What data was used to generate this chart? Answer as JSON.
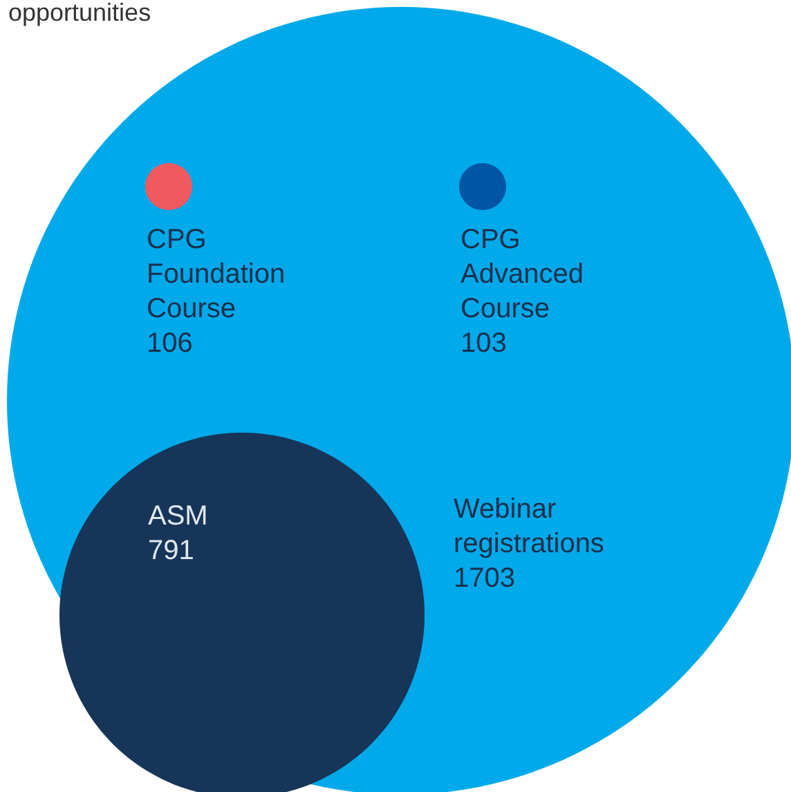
{
  "chart_data": {
    "type": "other",
    "title": "opportunities",
    "categories": [
      "Webinar registrations",
      "ASM",
      "CPG Foundation Course",
      "CPG Advanced Course"
    ],
    "values": [
      1703,
      791,
      106,
      103
    ],
    "data_labels": true,
    "colors": [
      "#00a9ea",
      "#163558",
      "#f05a5f",
      "#0055a5"
    ]
  }
}
